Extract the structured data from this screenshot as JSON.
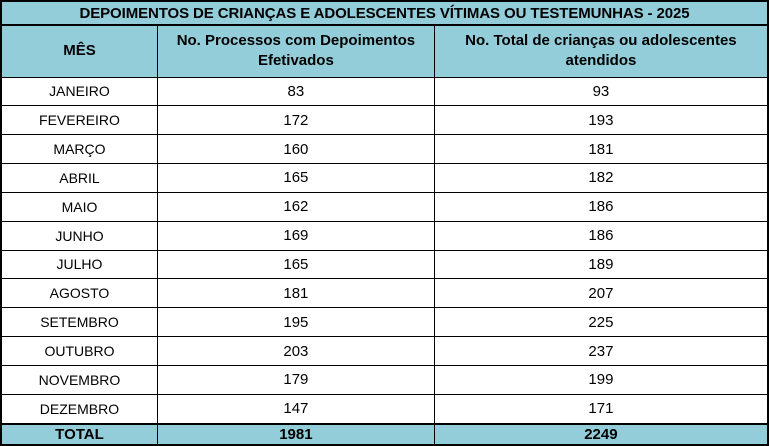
{
  "title": "DEPOIMENTOS DE CRIANÇAS E ADOLESCENTES VÍTIMAS OU TESTEMUNHAS - 2025",
  "columns": [
    "MÊS",
    "No. Processos com Depoimentos Efetivados",
    "No. Total de crianças ou adolescentes atendidos"
  ],
  "rows": [
    {
      "month": "JANEIRO",
      "processos": "83",
      "atendidos": "93"
    },
    {
      "month": "FEVEREIRO",
      "processos": "172",
      "atendidos": "193"
    },
    {
      "month": "MARÇO",
      "processos": "160",
      "atendidos": "181"
    },
    {
      "month": "ABRIL",
      "processos": "165",
      "atendidos": "182"
    },
    {
      "month": "MAIO",
      "processos": "162",
      "atendidos": "186"
    },
    {
      "month": "JUNHO",
      "processos": "169",
      "atendidos": "186"
    },
    {
      "month": "JULHO",
      "processos": "165",
      "atendidos": "189"
    },
    {
      "month": "AGOSTO",
      "processos": "181",
      "atendidos": "207"
    },
    {
      "month": "SETEMBRO",
      "processos": "195",
      "atendidos": "225"
    },
    {
      "month": "OUTUBRO",
      "processos": "203",
      "atendidos": "237"
    },
    {
      "month": "NOVEMBRO",
      "processos": "179",
      "atendidos": "199"
    },
    {
      "month": "DEZEMBRO",
      "processos": "147",
      "atendidos": "171"
    }
  ],
  "total": {
    "label": "TOTAL",
    "processos": "1981",
    "atendidos": "2249"
  },
  "colors": {
    "header_fill": "#93CDDA",
    "border": "#000000",
    "text": "#000000",
    "row_fill": "#FFFFFF"
  }
}
